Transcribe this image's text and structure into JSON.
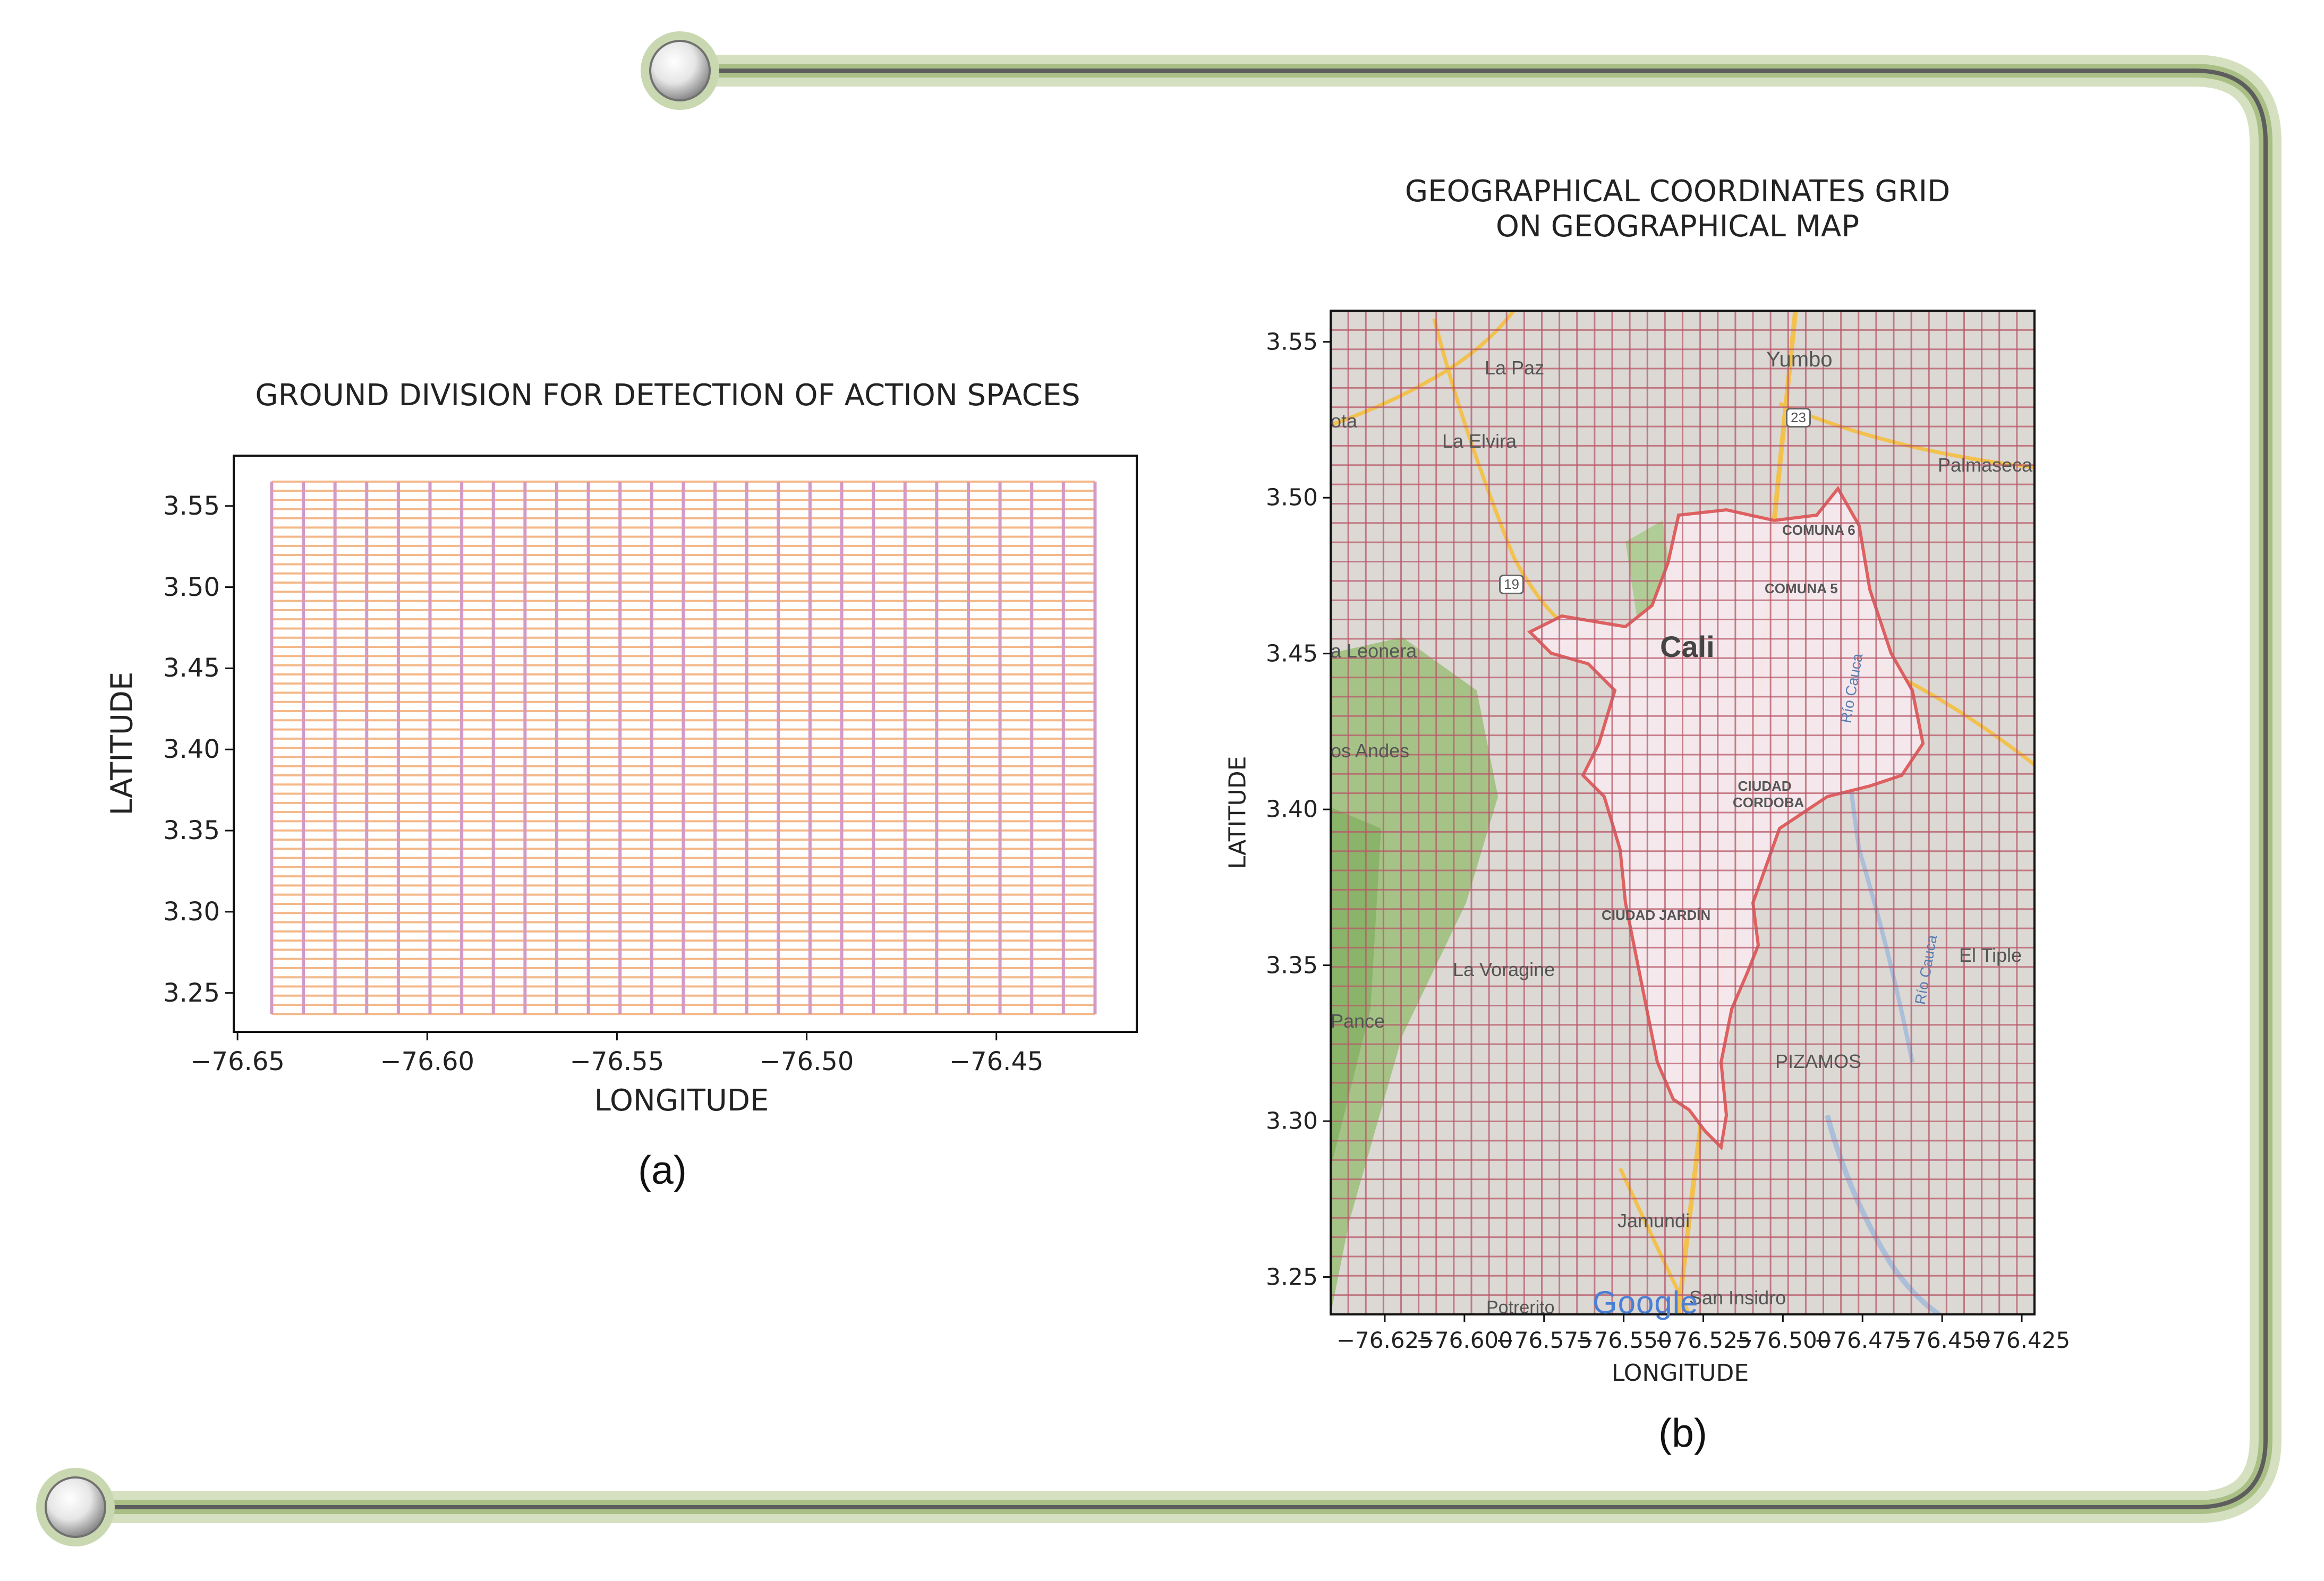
{
  "colors": {
    "frame_green": "#9fb77c",
    "frame_glow": "#c9d8b0",
    "grid_h": "#f3b889",
    "grid_v": "#d49ac5",
    "map_grid": "#b85a6a",
    "city_outline": "#e05a5a",
    "road_yellow": "#f2c14e",
    "forest_green": "#8cb86c"
  },
  "panels": {
    "a": {
      "caption": "(a)"
    },
    "b": {
      "caption": "(b)"
    }
  },
  "chart_data": [
    {
      "type": "heatmap",
      "title": "GROUND DIVISION FOR DETECTION OF ACTION SPACES",
      "xlabel": "LONGITUDE",
      "ylabel": "LATITUDE",
      "xlim": [
        -76.651,
        -76.413
      ],
      "ylim": [
        3.226,
        3.581
      ],
      "xticks": [
        "−76.65",
        "−76.60",
        "−76.55",
        "−76.50",
        "−76.45"
      ],
      "xtick_values": [
        -76.65,
        -76.6,
        -76.55,
        -76.5,
        -76.45
      ],
      "yticks": [
        "3.55",
        "3.50",
        "3.45",
        "3.40",
        "3.35",
        "3.30",
        "3.25"
      ],
      "ytick_values": [
        3.55,
        3.5,
        3.45,
        3.4,
        3.35,
        3.3,
        3.25
      ],
      "grid_extent": {
        "lon": [
          -76.641,
          -76.424
        ],
        "lat": [
          3.237,
          3.565
        ]
      },
      "grid_columns": 26,
      "grid_rows": 58
    },
    {
      "type": "heatmap",
      "title_lines": [
        "GEOGRAPHICAL COORDINATES GRID",
        "ON GEOGRAPHICAL MAP"
      ],
      "xlabel": "LONGITUDE",
      "ylabel": "LATITUDE",
      "xlim": [
        -76.642,
        -76.421
      ],
      "ylim": [
        3.238,
        3.56
      ],
      "xticks": [
        "−76.625",
        "−76.600",
        "−76.575",
        "−76.550",
        "−76.525",
        "−76.500",
        "−76.475",
        "−76.450",
        "−76.425"
      ],
      "xtick_values": [
        -76.625,
        -76.6,
        -76.575,
        -76.55,
        -76.525,
        -76.5,
        -76.475,
        -76.45,
        -76.425
      ],
      "yticks": [
        "3.55",
        "3.50",
        "3.45",
        "3.40",
        "3.35",
        "3.30",
        "3.25"
      ],
      "ytick_values": [
        3.55,
        3.5,
        3.45,
        3.4,
        3.35,
        3.3,
        3.25
      ],
      "grid_columns": 40,
      "grid_rows": 52,
      "map_labels": [
        "La Paz",
        "Yumbo",
        "23",
        "ota",
        "La Elvira",
        "Palmaseca",
        "COMUNA 6",
        "19",
        "COMUNA 5",
        "Cali",
        "a Leonera",
        "Río Cauca",
        "os Andes",
        "CIUDAD CORDOBA",
        "CIUDAD JARDÍN",
        "La Voragine",
        "El Tiple",
        "Pance",
        "PIZAMOS",
        "Jamundi",
        "Potrerito",
        "San Insidro",
        "Río Cauca",
        "Google"
      ]
    }
  ]
}
